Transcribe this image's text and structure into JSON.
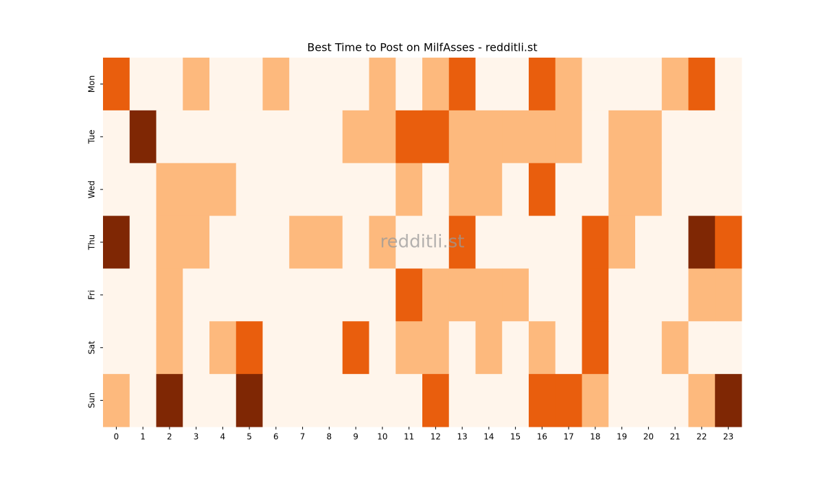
{
  "chart_data": {
    "type": "heatmap",
    "title": "Best Time to Post on MilfAsses - redditli.st",
    "watermark": "redditli.st",
    "x_categories": [
      0,
      1,
      2,
      3,
      4,
      5,
      6,
      7,
      8,
      9,
      10,
      11,
      12,
      13,
      14,
      15,
      16,
      17,
      18,
      19,
      20,
      21,
      22,
      23
    ],
    "y_categories": [
      "Mon",
      "Tue",
      "Wed",
      "Thu",
      "Fri",
      "Sat",
      "Sun"
    ],
    "zlim": [
      0,
      3
    ],
    "colormap": [
      "#fff5eb",
      "#fdb97d",
      "#e95e0d",
      "#7f2704"
    ],
    "values": [
      [
        2,
        0,
        0,
        1,
        0,
        0,
        1,
        0,
        0,
        0,
        1,
        0,
        1,
        2,
        0,
        0,
        2,
        1,
        0,
        0,
        0,
        1,
        2,
        0
      ],
      [
        0,
        3,
        0,
        0,
        0,
        0,
        0,
        0,
        0,
        1,
        1,
        2,
        2,
        1,
        1,
        1,
        1,
        1,
        0,
        1,
        1,
        0,
        0,
        0
      ],
      [
        0,
        0,
        1,
        1,
        1,
        0,
        0,
        0,
        0,
        0,
        0,
        1,
        0,
        1,
        1,
        0,
        2,
        0,
        0,
        1,
        1,
        0,
        0,
        0
      ],
      [
        3,
        0,
        1,
        1,
        0,
        0,
        0,
        1,
        1,
        0,
        1,
        0,
        0,
        2,
        0,
        0,
        0,
        0,
        2,
        1,
        0,
        0,
        3,
        2
      ],
      [
        0,
        0,
        1,
        0,
        0,
        0,
        0,
        0,
        0,
        0,
        0,
        2,
        1,
        1,
        1,
        1,
        0,
        0,
        2,
        0,
        0,
        0,
        1,
        1
      ],
      [
        0,
        0,
        1,
        0,
        1,
        2,
        0,
        0,
        0,
        2,
        0,
        1,
        1,
        0,
        1,
        0,
        1,
        0,
        2,
        0,
        0,
        1,
        0,
        0
      ],
      [
        1,
        0,
        3,
        0,
        0,
        3,
        0,
        0,
        0,
        0,
        0,
        0,
        2,
        0,
        0,
        0,
        2,
        2,
        1,
        0,
        0,
        0,
        1,
        3
      ]
    ]
  }
}
